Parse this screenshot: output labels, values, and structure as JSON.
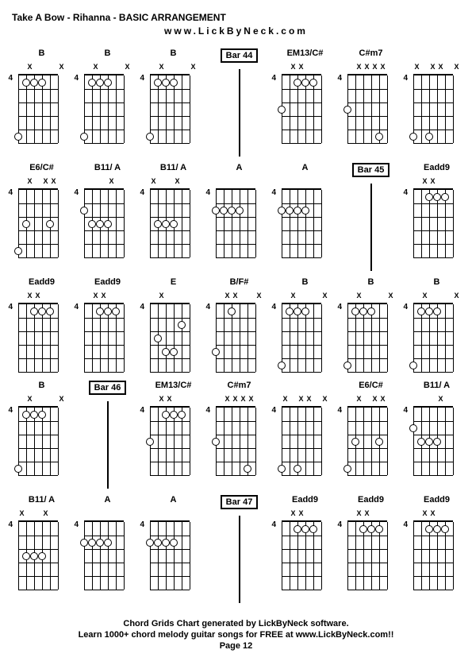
{
  "title": "Take A Bow - Rihanna - BASIC ARRANGEMENT",
  "website": "www.LickByNeck.com",
  "footer": {
    "line1": "Chord Grids Chart generated by LickByNeck software.",
    "line2": "Learn 1000+ chord melody guitar songs for FREE at www.LickByNeck.com!!",
    "page": "Page 12"
  },
  "fret_number": "4",
  "chords": [
    {
      "label": "B",
      "type": "chord",
      "mutes": [
        0,
        1,
        0,
        0,
        0,
        1
      ],
      "dots": [
        [
          1,
          1
        ],
        [
          2,
          1
        ],
        [
          3,
          1
        ],
        [
          0,
          5
        ]
      ]
    },
    {
      "label": "B",
      "type": "chord",
      "mutes": [
        0,
        1,
        0,
        0,
        0,
        1
      ],
      "dots": [
        [
          1,
          1
        ],
        [
          2,
          1
        ],
        [
          3,
          1
        ],
        [
          0,
          5
        ]
      ]
    },
    {
      "label": "B",
      "type": "chord",
      "mutes": [
        0,
        1,
        0,
        0,
        0,
        1
      ],
      "dots": [
        [
          1,
          1
        ],
        [
          2,
          1
        ],
        [
          3,
          1
        ],
        [
          0,
          5
        ]
      ]
    },
    {
      "label": "Bar 44",
      "type": "bar"
    },
    {
      "label": "EM13/C#",
      "type": "chord",
      "mutes": [
        0,
        1,
        1,
        0,
        0,
        0
      ],
      "dots": [
        [
          2,
          1
        ],
        [
          3,
          1
        ],
        [
          4,
          1
        ],
        [
          0,
          3
        ]
      ]
    },
    {
      "label": "C#m7",
      "type": "chord",
      "mutes": [
        0,
        1,
        1,
        1,
        1,
        0
      ],
      "dots": [
        [
          0,
          3
        ],
        [
          4,
          5
        ]
      ]
    },
    {
      "label": "",
      "type": "chord",
      "mutes": [
        1,
        0,
        1,
        1,
        0,
        1
      ],
      "dots": [
        [
          0,
          5
        ],
        [
          2,
          5
        ]
      ]
    },
    {
      "label": "E6/C#",
      "type": "chord",
      "mutes": [
        0,
        1,
        0,
        1,
        1,
        0
      ],
      "dots": [
        [
          1,
          3
        ],
        [
          4,
          3
        ],
        [
          0,
          5
        ]
      ]
    },
    {
      "label": "B11/ A",
      "type": "chord",
      "mutes": [
        0,
        0,
        0,
        1,
        0,
        0
      ],
      "dots": [
        [
          0,
          2
        ],
        [
          1,
          3
        ],
        [
          2,
          3
        ],
        [
          3,
          3
        ]
      ]
    },
    {
      "label": "B11/ A",
      "type": "chord",
      "mutes": [
        1,
        0,
        0,
        1,
        0,
        0
      ],
      "dots": [
        [
          1,
          3
        ],
        [
          2,
          3
        ],
        [
          3,
          3
        ]
      ]
    },
    {
      "label": "A",
      "type": "chord",
      "mutes": [
        0,
        0,
        0,
        0,
        0,
        0
      ],
      "dots": [
        [
          0,
          2
        ],
        [
          1,
          2
        ],
        [
          2,
          2
        ],
        [
          3,
          2
        ]
      ]
    },
    {
      "label": "A",
      "type": "chord",
      "mutes": [
        0,
        0,
        0,
        0,
        0,
        0
      ],
      "dots": [
        [
          0,
          2
        ],
        [
          1,
          2
        ],
        [
          2,
          2
        ],
        [
          3,
          2
        ]
      ]
    },
    {
      "label": "Bar 45",
      "type": "bar"
    },
    {
      "label": "Eadd9",
      "type": "chord",
      "mutes": [
        0,
        1,
        1,
        0,
        0,
        0
      ],
      "dots": [
        [
          2,
          1
        ],
        [
          3,
          1
        ],
        [
          4,
          1
        ]
      ]
    },
    {
      "label": "Eadd9",
      "type": "chord",
      "mutes": [
        0,
        1,
        1,
        0,
        0,
        0
      ],
      "dots": [
        [
          2,
          1
        ],
        [
          3,
          1
        ],
        [
          4,
          1
        ]
      ]
    },
    {
      "label": "Eadd9",
      "type": "chord",
      "mutes": [
        0,
        1,
        1,
        0,
        0,
        0
      ],
      "dots": [
        [
          2,
          1
        ],
        [
          3,
          1
        ],
        [
          4,
          1
        ]
      ]
    },
    {
      "label": "E",
      "type": "chord",
      "mutes": [
        0,
        1,
        0,
        0,
        0,
        0
      ],
      "dots": [
        [
          1,
          3
        ],
        [
          4,
          2
        ],
        [
          2,
          4
        ],
        [
          3,
          4
        ]
      ]
    },
    {
      "label": "B/F#",
      "type": "chord",
      "mutes": [
        0,
        1,
        1,
        0,
        0,
        1
      ],
      "dots": [
        [
          2,
          1
        ],
        [
          0,
          4
        ]
      ]
    },
    {
      "label": "B",
      "type": "chord",
      "mutes": [
        0,
        1,
        0,
        0,
        0,
        1
      ],
      "dots": [
        [
          1,
          1
        ],
        [
          2,
          1
        ],
        [
          3,
          1
        ],
        [
          0,
          5
        ]
      ]
    },
    {
      "label": "B",
      "type": "chord",
      "mutes": [
        0,
        1,
        0,
        0,
        0,
        1
      ],
      "dots": [
        [
          1,
          1
        ],
        [
          2,
          1
        ],
        [
          3,
          1
        ],
        [
          0,
          5
        ]
      ]
    },
    {
      "label": "B",
      "type": "chord",
      "mutes": [
        0,
        1,
        0,
        0,
        0,
        1
      ],
      "dots": [
        [
          1,
          1
        ],
        [
          2,
          1
        ],
        [
          3,
          1
        ],
        [
          0,
          5
        ]
      ]
    },
    {
      "label": "B",
      "type": "chord",
      "mutes": [
        0,
        1,
        0,
        0,
        0,
        1
      ],
      "dots": [
        [
          1,
          1
        ],
        [
          2,
          1
        ],
        [
          3,
          1
        ],
        [
          0,
          5
        ]
      ]
    },
    {
      "label": "Bar 46",
      "type": "bar"
    },
    {
      "label": "EM13/C#",
      "type": "chord",
      "mutes": [
        0,
        1,
        1,
        0,
        0,
        0
      ],
      "dots": [
        [
          2,
          1
        ],
        [
          3,
          1
        ],
        [
          4,
          1
        ],
        [
          0,
          3
        ]
      ]
    },
    {
      "label": "C#m7",
      "type": "chord",
      "mutes": [
        0,
        1,
        1,
        1,
        1,
        0
      ],
      "dots": [
        [
          0,
          3
        ],
        [
          4,
          5
        ]
      ]
    },
    {
      "label": "",
      "type": "chord",
      "mutes": [
        1,
        0,
        1,
        1,
        0,
        1
      ],
      "dots": [
        [
          0,
          5
        ],
        [
          2,
          5
        ]
      ]
    },
    {
      "label": "E6/C#",
      "type": "chord",
      "mutes": [
        0,
        1,
        0,
        1,
        1,
        0
      ],
      "dots": [
        [
          1,
          3
        ],
        [
          4,
          3
        ],
        [
          0,
          5
        ]
      ]
    },
    {
      "label": "B11/ A",
      "type": "chord",
      "mutes": [
        0,
        0,
        0,
        1,
        0,
        0
      ],
      "dots": [
        [
          0,
          2
        ],
        [
          1,
          3
        ],
        [
          2,
          3
        ],
        [
          3,
          3
        ]
      ]
    },
    {
      "label": "B11/ A",
      "type": "chord",
      "mutes": [
        1,
        0,
        0,
        1,
        0,
        0
      ],
      "dots": [
        [
          1,
          3
        ],
        [
          2,
          3
        ],
        [
          3,
          3
        ]
      ]
    },
    {
      "label": "A",
      "type": "chord",
      "mutes": [
        0,
        0,
        0,
        0,
        0,
        0
      ],
      "dots": [
        [
          0,
          2
        ],
        [
          1,
          2
        ],
        [
          2,
          2
        ],
        [
          3,
          2
        ]
      ]
    },
    {
      "label": "A",
      "type": "chord",
      "mutes": [
        0,
        0,
        0,
        0,
        0,
        0
      ],
      "dots": [
        [
          0,
          2
        ],
        [
          1,
          2
        ],
        [
          2,
          2
        ],
        [
          3,
          2
        ]
      ]
    },
    {
      "label": "Bar 47",
      "type": "bar"
    },
    {
      "label": "Eadd9",
      "type": "chord",
      "mutes": [
        0,
        1,
        1,
        0,
        0,
        0
      ],
      "dots": [
        [
          2,
          1
        ],
        [
          3,
          1
        ],
        [
          4,
          1
        ]
      ]
    },
    {
      "label": "Eadd9",
      "type": "chord",
      "mutes": [
        0,
        1,
        1,
        0,
        0,
        0
      ],
      "dots": [
        [
          2,
          1
        ],
        [
          3,
          1
        ],
        [
          4,
          1
        ]
      ]
    },
    {
      "label": "Eadd9",
      "type": "chord",
      "mutes": [
        0,
        1,
        1,
        0,
        0,
        0
      ],
      "dots": [
        [
          2,
          1
        ],
        [
          3,
          1
        ],
        [
          4,
          1
        ]
      ]
    }
  ]
}
